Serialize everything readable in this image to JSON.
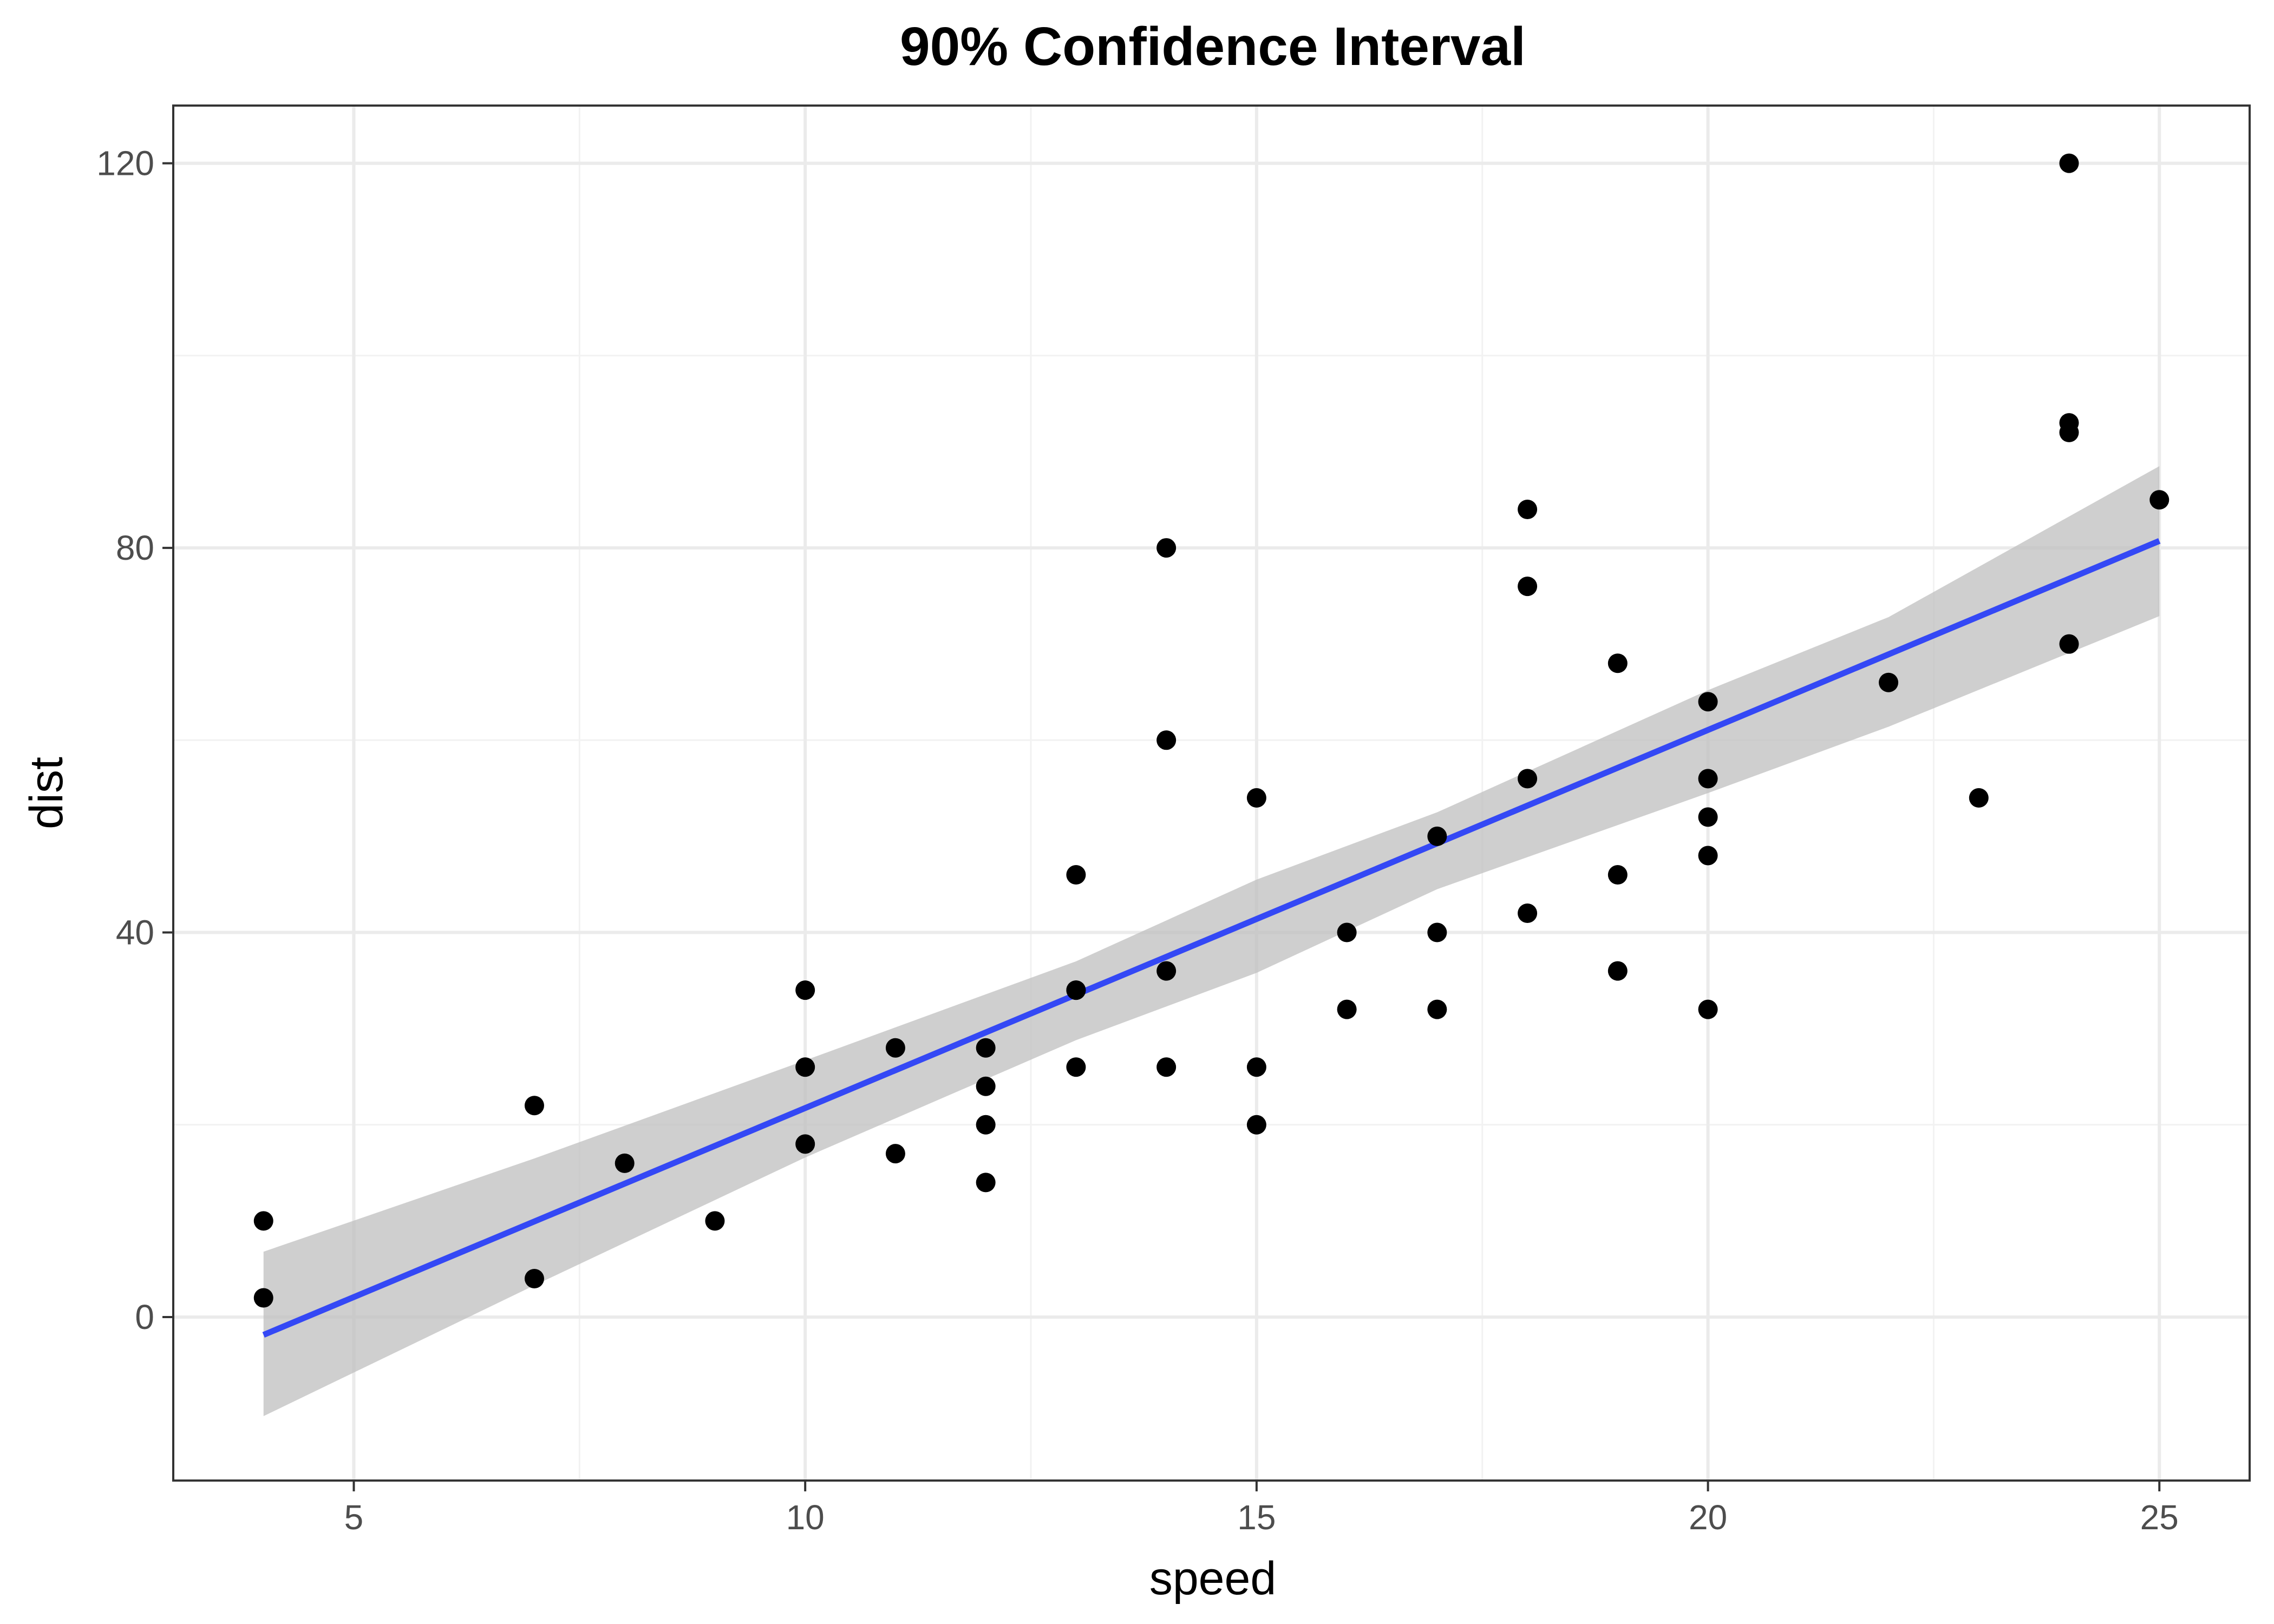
{
  "chart_data": {
    "type": "scatter",
    "title": "90% Confidence Interval",
    "xlabel": "speed",
    "ylabel": "dist",
    "xlim": [
      3.0,
      26.0
    ],
    "ylim": [
      -17.0,
      126.0
    ],
    "x_ticks": [
      5,
      10,
      15,
      20,
      25
    ],
    "y_ticks": [
      0,
      40,
      80,
      120
    ],
    "x_tick_labels": [
      "5",
      "10",
      "15",
      "20",
      "25"
    ],
    "y_tick_labels": [
      "0",
      "40",
      "80",
      "120"
    ],
    "grid": true,
    "legend": "none",
    "points": {
      "x": [
        4,
        4,
        7,
        7,
        8,
        9,
        10,
        10,
        10,
        11,
        11,
        12,
        12,
        12,
        12,
        13,
        13,
        13,
        13,
        14,
        14,
        14,
        14,
        15,
        15,
        15,
        16,
        16,
        17,
        17,
        17,
        18,
        18,
        18,
        18,
        19,
        19,
        19,
        20,
        20,
        20,
        20,
        20,
        22,
        23,
        24,
        24,
        24,
        24,
        25
      ],
      "y": [
        2,
        10,
        4,
        22,
        16,
        10,
        18,
        26,
        34,
        17,
        28,
        14,
        20,
        24,
        28,
        26,
        34,
        34,
        46,
        26,
        36,
        60,
        80,
        20,
        26,
        54,
        32,
        40,
        32,
        40,
        50,
        42,
        56,
        76,
        84,
        36,
        46,
        68,
        32,
        48,
        52,
        56,
        64,
        66,
        54,
        70,
        92,
        93,
        120,
        85
      ],
      "color": "#000000"
    },
    "fit_line": {
      "method": "linear regression",
      "intercept": -17.579,
      "slope": 3.932,
      "x_range": [
        4,
        25
      ],
      "color": "#3448F5"
    },
    "confidence_band": {
      "level": 0.9,
      "x": [
        4,
        7,
        10,
        13,
        15,
        17,
        20,
        22,
        25
      ],
      "lower": [
        -10.3,
        3.3,
        16.6,
        28.8,
        35.8,
        44.5,
        54.5,
        61.4,
        72.9
      ],
      "upper": [
        6.8,
        16.5,
        26.7,
        37.0,
        45.5,
        52.5,
        65.2,
        72.8,
        88.5
      ],
      "color": "#BFBFBF"
    },
    "colors": {
      "panel_border": "#333333",
      "grid_major": "#EBEBEB",
      "grid_minor": "#F2F2F2",
      "tick_text": "#4D4D4D"
    }
  }
}
